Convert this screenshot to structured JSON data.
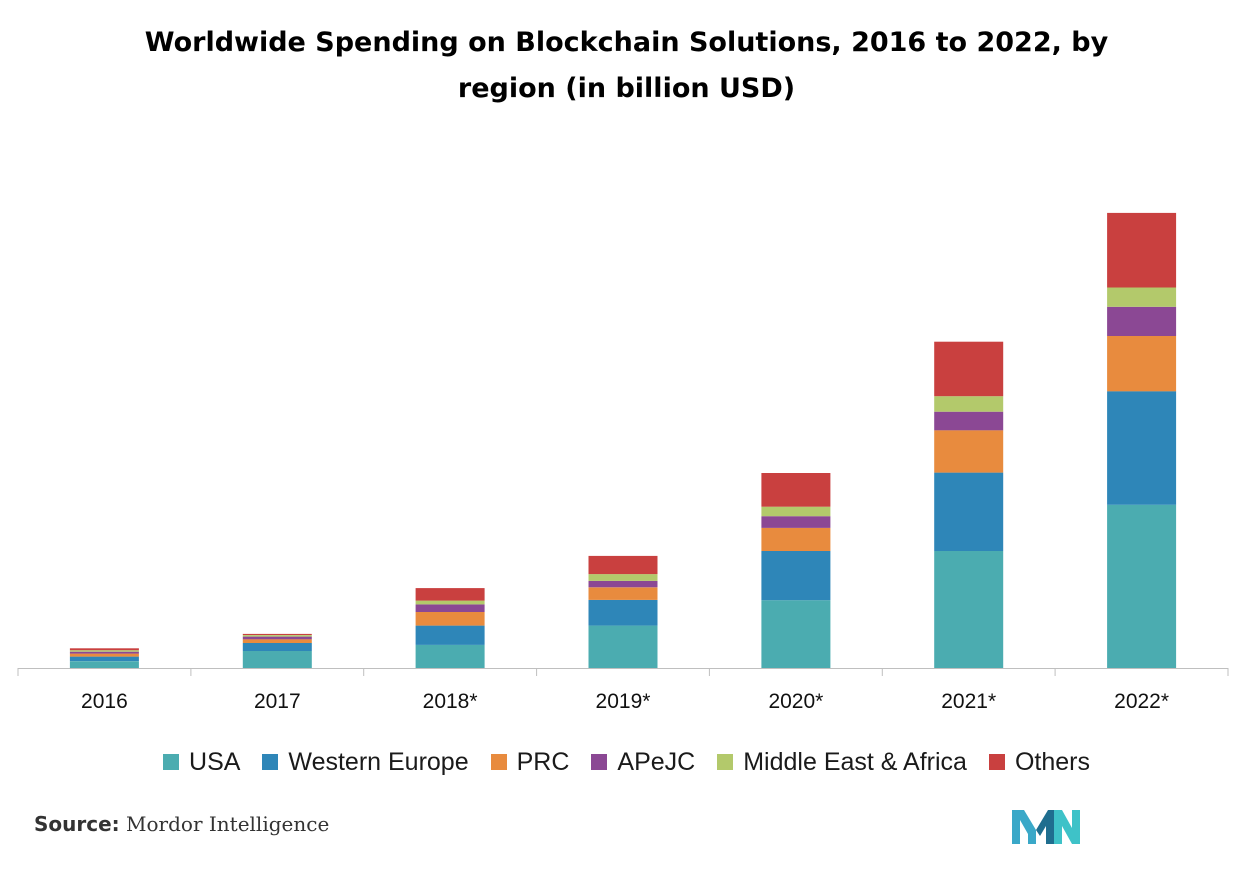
{
  "title_line1": "Worldwide Spending on Blockchain Solutions, 2016 to 2022, by",
  "title_line2": "region (in billion USD)",
  "source_label": "Source:",
  "source_text": "Mordor Intelligence",
  "logo_icon": "mordor-intelligence-logo-icon",
  "chart_data": {
    "type": "bar",
    "stacked": true,
    "title": "Worldwide Spending on Blockchain Solutions, 2016 to 2022, by region (in billion USD)",
    "xlabel": "",
    "ylabel": "",
    "categories": [
      "2016",
      "2017",
      "2018*",
      "2019*",
      "2020*",
      "2021*",
      "2022*"
    ],
    "ylim": [
      0,
      12
    ],
    "grid": false,
    "legend_position": "bottom",
    "series": [
      {
        "name": "USA",
        "color": "#4bacb0",
        "values": [
          0.18,
          0.45,
          0.61,
          1.12,
          1.79,
          3.09,
          4.31
        ]
      },
      {
        "name": "Western Europe",
        "color": "#2e86b8",
        "values": [
          0.12,
          0.21,
          0.51,
          0.68,
          1.3,
          2.07,
          3.0
        ]
      },
      {
        "name": "PRC",
        "color": "#e88b3e",
        "values": [
          0.08,
          0.1,
          0.36,
          0.33,
          0.61,
          1.12,
          1.46
        ]
      },
      {
        "name": "APeJC",
        "color": "#8b4894",
        "values": [
          0.05,
          0.07,
          0.2,
          0.17,
          0.31,
          0.49,
          0.77
        ]
      },
      {
        "name": "Middle East & Africa",
        "color": "#b3c96b",
        "values": [
          0.04,
          0.04,
          0.1,
          0.18,
          0.25,
          0.41,
          0.51
        ]
      },
      {
        "name": "Others",
        "color": "#c9403f",
        "values": [
          0.05,
          0.03,
          0.33,
          0.48,
          0.89,
          1.44,
          1.97
        ]
      }
    ]
  }
}
